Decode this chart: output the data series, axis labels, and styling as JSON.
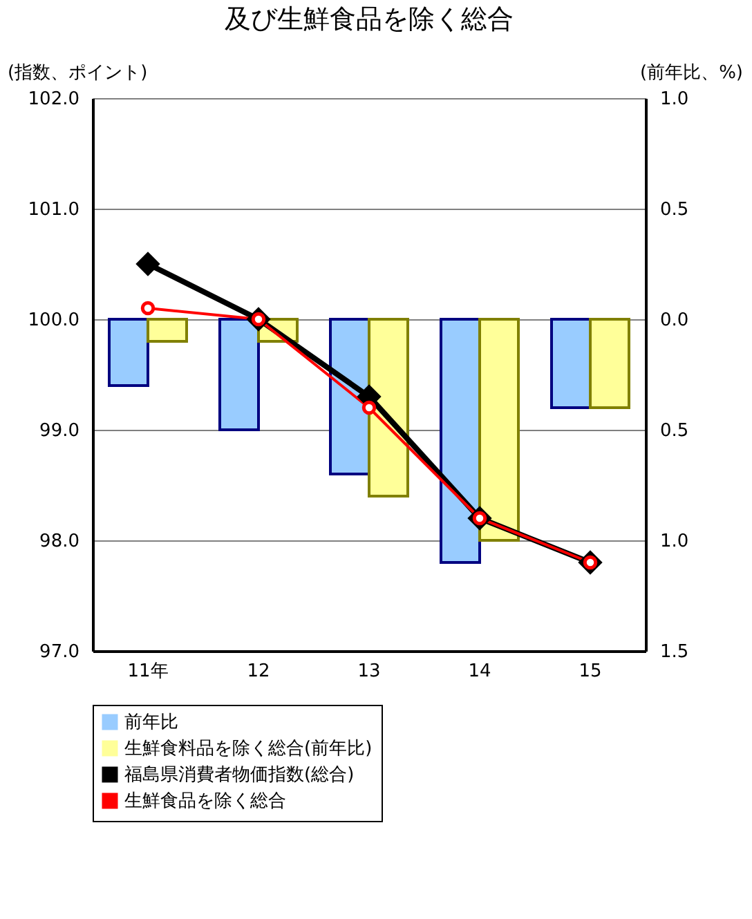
{
  "chart_data": {
    "type": "bar",
    "title": "及び生鮮食品を除く総合",
    "ylabel": "(指数、ポイント)",
    "y2label": "(前年比、%)",
    "categories": [
      "11年",
      "12",
      "13",
      "14",
      "15"
    ],
    "series": [
      {
        "name": "前年比",
        "axis": "y2",
        "color": "#99ccff",
        "values": [
          -0.3,
          -0.5,
          -0.7,
          -1.1,
          -0.4
        ]
      },
      {
        "name": "生鮮食料品を除く総合(前年比)",
        "axis": "y2",
        "color": "#ffff99",
        "values": [
          -0.1,
          -0.1,
          -0.8,
          -1.0,
          -0.4
        ]
      },
      {
        "name": "福島県消費者物価指数(総合)",
        "type": "line",
        "axis": "y",
        "color": "#000000",
        "marker": "diamond",
        "values": [
          100.5,
          100.0,
          99.3,
          98.2,
          97.8
        ]
      },
      {
        "name": "生鮮食品を除く総合",
        "type": "line",
        "axis": "y",
        "color": "#ff0000",
        "marker": "circle",
        "values": [
          100.1,
          100.0,
          99.2,
          98.2,
          97.8
        ]
      }
    ],
    "ylim": [
      97.0,
      102.0
    ],
    "yticks": [
      {
        "value": 97,
        "label": "97.0"
      },
      {
        "value": 98,
        "label": "98.0"
      },
      {
        "value": 99,
        "label": "99.0"
      },
      {
        "value": 100,
        "label": "100.0"
      },
      {
        "value": 101,
        "label": "101.0"
      },
      {
        "value": 102,
        "label": "102.0"
      }
    ],
    "y2lim": [
      -1.5,
      1.0
    ],
    "y2ticks": [
      {
        "value": -1.5,
        "label": "1.5"
      },
      {
        "value": -1.0,
        "label": "1.0"
      },
      {
        "value": -0.5,
        "label": "0.5"
      },
      {
        "value": 0,
        "label": "0.0"
      },
      {
        "value": 0.5,
        "label": "0.5"
      },
      {
        "value": 1.0,
        "label": "1.0"
      }
    ],
    "grid": "y",
    "legend": "bottom"
  }
}
